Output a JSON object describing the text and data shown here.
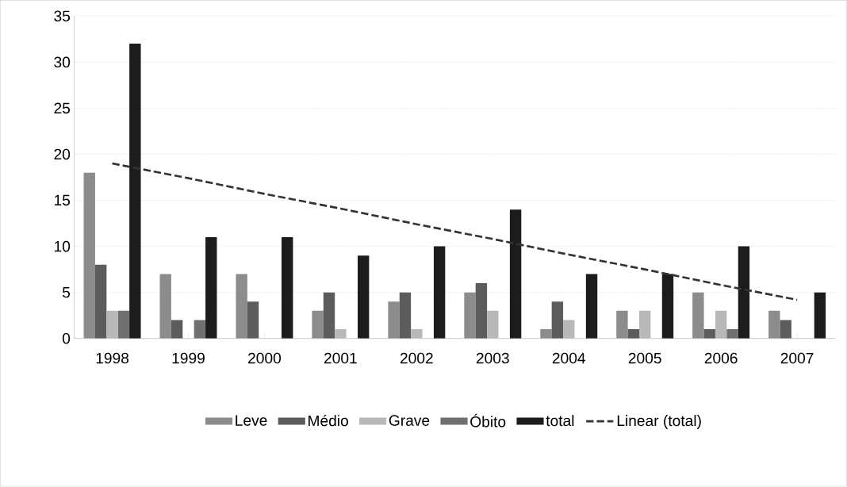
{
  "chart_data": {
    "type": "bar",
    "categories": [
      "1998",
      "1999",
      "2000",
      "2001",
      "2002",
      "2003",
      "2004",
      "2005",
      "2006",
      "2007"
    ],
    "series": [
      {
        "name": "Leve",
        "color": "#8c8c8c",
        "values": [
          18,
          7,
          7,
          3,
          4,
          5,
          1,
          3,
          5,
          3
        ]
      },
      {
        "name": "Médio",
        "color": "#5c5c5c",
        "values": [
          8,
          2,
          4,
          5,
          5,
          6,
          4,
          1,
          1,
          2
        ]
      },
      {
        "name": "Grave",
        "color": "#b8b8b8",
        "values": [
          3,
          0,
          0,
          1,
          1,
          3,
          2,
          3,
          3,
          0
        ]
      },
      {
        "name": "Óbito",
        "color": "#707070",
        "values": [
          3,
          2,
          0,
          0,
          0,
          0,
          0,
          0,
          1,
          0
        ]
      },
      {
        "name": "total",
        "color": "#1c1c1c",
        "values": [
          32,
          11,
          11,
          9,
          10,
          14,
          7,
          7,
          10,
          5
        ]
      },
      {
        "name": "Linear (total)",
        "type": "line",
        "color": "#333333",
        "line_style": "dashed",
        "values": [
          19.0,
          17.4,
          15.7,
          14.1,
          12.4,
          10.8,
          9.1,
          7.5,
          5.8,
          4.2
        ]
      }
    ],
    "ylim": [
      0,
      35
    ],
    "yticks": [
      0,
      5,
      10,
      15,
      20,
      25,
      30,
      35
    ],
    "grid": "y",
    "legend": "bottom"
  }
}
